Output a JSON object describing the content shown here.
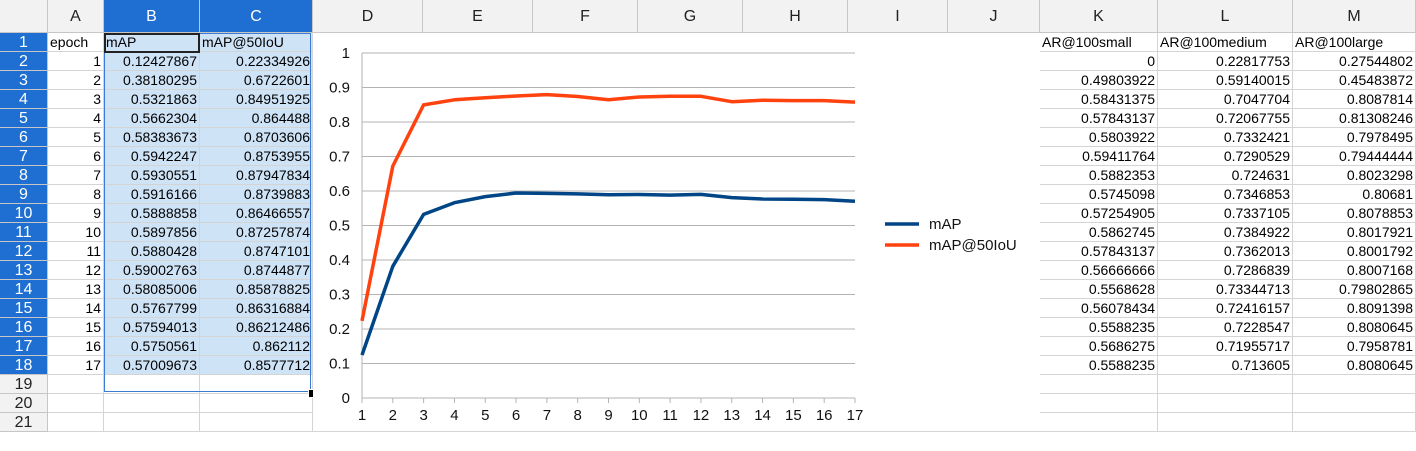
{
  "columns": [
    "A",
    "B",
    "C",
    "D",
    "E",
    "F",
    "G",
    "H",
    "I",
    "J",
    "K",
    "L",
    "M"
  ],
  "selected_columns": [
    "B",
    "C"
  ],
  "rows": [
    "1",
    "2",
    "3",
    "4",
    "5",
    "6",
    "7",
    "8",
    "9",
    "10",
    "11",
    "12",
    "13",
    "14",
    "15",
    "16",
    "17",
    "18",
    "19",
    "20",
    "21"
  ],
  "selected_rows": [
    "1",
    "2",
    "3",
    "4",
    "5",
    "6",
    "7",
    "8",
    "9",
    "10",
    "11",
    "12",
    "13",
    "14",
    "15",
    "16",
    "17",
    "18"
  ],
  "left_headers": [
    "epoch",
    "mAP",
    "mAP@50IoU"
  ],
  "left_data": [
    [
      "1",
      "0.12427867",
      "0.22334926"
    ],
    [
      "2",
      "0.38180295",
      "0.6722601"
    ],
    [
      "3",
      "0.5321863",
      "0.84951925"
    ],
    [
      "4",
      "0.5662304",
      "0.864488"
    ],
    [
      "5",
      "0.58383673",
      "0.8703606"
    ],
    [
      "6",
      "0.5942247",
      "0.8753955"
    ],
    [
      "7",
      "0.5930551",
      "0.87947834"
    ],
    [
      "8",
      "0.5916166",
      "0.8739883"
    ],
    [
      "9",
      "0.5888858",
      "0.86466557"
    ],
    [
      "10",
      "0.5897856",
      "0.87257874"
    ],
    [
      "11",
      "0.5880428",
      "0.8747101"
    ],
    [
      "12",
      "0.59002763",
      "0.8744877"
    ],
    [
      "13",
      "0.58085006",
      "0.85878825"
    ],
    [
      "14",
      "0.5767799",
      "0.86316884"
    ],
    [
      "15",
      "0.57594013",
      "0.86212486"
    ],
    [
      "16",
      "0.5750561",
      "0.862112"
    ],
    [
      "17",
      "0.57009673",
      "0.8577712"
    ]
  ],
  "right_headers": [
    "AR@100small",
    "AR@100medium",
    "AR@100large"
  ],
  "right_data": [
    [
      "0",
      "0.22817753",
      "0.27544802"
    ],
    [
      "0.49803922",
      "0.59140015",
      "0.45483872"
    ],
    [
      "0.58431375",
      "0.7047704",
      "0.8087814"
    ],
    [
      "0.57843137",
      "0.72067755",
      "0.81308246"
    ],
    [
      "0.5803922",
      "0.7332421",
      "0.7978495"
    ],
    [
      "0.59411764",
      "0.7290529",
      "0.79444444"
    ],
    [
      "0.5882353",
      "0.724631",
      "0.8023298"
    ],
    [
      "0.5745098",
      "0.7346853",
      "0.80681"
    ],
    [
      "0.57254905",
      "0.7337105",
      "0.8078853"
    ],
    [
      "0.5862745",
      "0.7384922",
      "0.8017921"
    ],
    [
      "0.57843137",
      "0.7362013",
      "0.8001792"
    ],
    [
      "0.56666666",
      "0.7286839",
      "0.8007168"
    ],
    [
      "0.5568628",
      "0.73344713",
      "0.79802865"
    ],
    [
      "0.56078434",
      "0.72416157",
      "0.8091398"
    ],
    [
      "0.5588235",
      "0.7228547",
      "0.8080645"
    ],
    [
      "0.5686275",
      "0.71955717",
      "0.7958781"
    ],
    [
      "0.5588235",
      "0.713605",
      "0.8080645"
    ]
  ],
  "colors": {
    "selection_header": "#1e6fd1",
    "selection_fill": "#cfe3f7",
    "series_map": "#004586",
    "series_map50": "#ff420e"
  },
  "chart_data": {
    "type": "line",
    "x": [
      1,
      2,
      3,
      4,
      5,
      6,
      7,
      8,
      9,
      10,
      11,
      12,
      13,
      14,
      15,
      16,
      17
    ],
    "series": [
      {
        "name": "mAP",
        "color": "#004586",
        "values": [
          0.12427867,
          0.38180295,
          0.5321863,
          0.5662304,
          0.58383673,
          0.5942247,
          0.5930551,
          0.5916166,
          0.5888858,
          0.5897856,
          0.5880428,
          0.59002763,
          0.58085006,
          0.5767799,
          0.57594013,
          0.5750561,
          0.57009673
        ]
      },
      {
        "name": "mAP@50IoU",
        "color": "#ff420e",
        "values": [
          0.22334926,
          0.6722601,
          0.84951925,
          0.864488,
          0.8703606,
          0.8753955,
          0.87947834,
          0.8739883,
          0.86466557,
          0.87257874,
          0.8747101,
          0.8744877,
          0.85878825,
          0.86316884,
          0.86212486,
          0.862112,
          0.8577712
        ]
      }
    ],
    "y_ticks": [
      "0",
      "0.1",
      "0.2",
      "0.3",
      "0.4",
      "0.5",
      "0.6",
      "0.7",
      "0.8",
      "0.9",
      "1"
    ],
    "x_ticks": [
      "1",
      "2",
      "3",
      "4",
      "5",
      "6",
      "7",
      "8",
      "9",
      "10",
      "11",
      "12",
      "13",
      "14",
      "15",
      "16",
      "17"
    ],
    "ylim": [
      0,
      1
    ],
    "grid": true,
    "legend": "right",
    "title": "",
    "xlabel": "",
    "ylabel": ""
  }
}
